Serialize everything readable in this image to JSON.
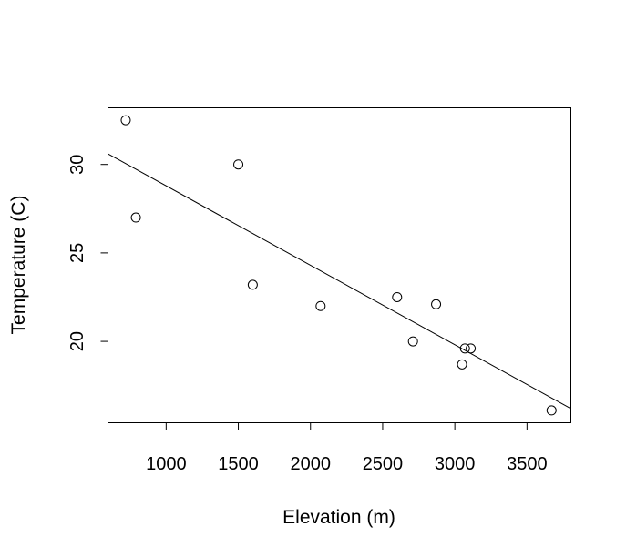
{
  "chart_data": {
    "type": "scatter",
    "title": "",
    "xlabel": "Elevation (m)",
    "ylabel": "Temperature (C)",
    "xlim": [
      597,
      3804
    ],
    "ylim": [
      15.4,
      33.2
    ],
    "grid": false,
    "legend": "none",
    "x_ticks": [
      1000,
      1500,
      2000,
      2500,
      3000,
      3500
    ],
    "x_tick_labels": [
      "1000",
      "1500",
      "2000",
      "2500",
      "3000",
      "3500"
    ],
    "y_ticks": [
      20,
      25,
      30
    ],
    "y_tick_labels": [
      "20",
      "25",
      "30"
    ],
    "points": [
      {
        "x": 720,
        "y": 32.5
      },
      {
        "x": 790,
        "y": 27.0
      },
      {
        "x": 1500,
        "y": 30.0
      },
      {
        "x": 1600,
        "y": 23.2
      },
      {
        "x": 2070,
        "y": 22.0
      },
      {
        "x": 2600,
        "y": 22.5
      },
      {
        "x": 2710,
        "y": 20.0
      },
      {
        "x": 2870,
        "y": 22.1
      },
      {
        "x": 3050,
        "y": 18.7
      },
      {
        "x": 3070,
        "y": 19.6
      },
      {
        "x": 3110,
        "y": 19.6
      },
      {
        "x": 3670,
        "y": 16.1
      }
    ],
    "fit_line": {
      "x": [
        597,
        3804
      ],
      "y": [
        30.6,
        16.2
      ]
    },
    "colors": {
      "points": "#000000",
      "line": "#000000",
      "frame": "#000000"
    }
  }
}
